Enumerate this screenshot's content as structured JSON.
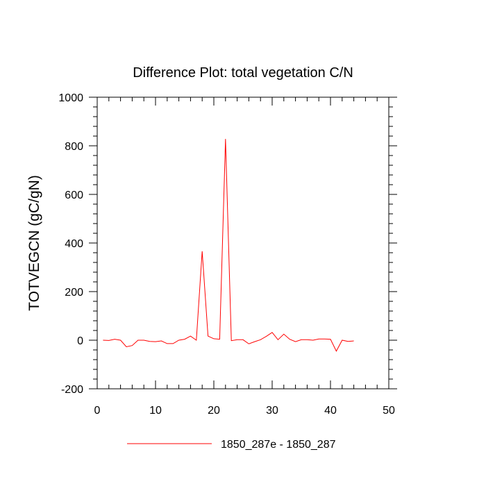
{
  "chart_data": {
    "type": "line",
    "title": "Difference Plot: total vegetation C/N",
    "xlabel": "",
    "ylabel": "TOTVEGCN  (gC/gN)",
    "xlim": [
      0,
      50
    ],
    "ylim": [
      -200,
      1000
    ],
    "xticks": [
      0,
      10,
      20,
      30,
      40,
      50
    ],
    "yticks": [
      -200,
      0,
      200,
      400,
      600,
      800,
      1000
    ],
    "xtick_labels": [
      "0",
      "10",
      "20",
      "30",
      "40",
      "50"
    ],
    "ytick_labels": [
      "-200",
      "0",
      "200",
      "400",
      "600",
      "800",
      "1000"
    ],
    "legend_position": "bottom-center",
    "series": [
      {
        "name": "1850_287e - 1850_287",
        "color": "#ff0000",
        "x": [
          1,
          2,
          3,
          4,
          5,
          6,
          7,
          8,
          9,
          10,
          11,
          12,
          13,
          14,
          15,
          16,
          17,
          18,
          19,
          20,
          21,
          22,
          23,
          24,
          25,
          26,
          27,
          28,
          29,
          30,
          31,
          32,
          33,
          34,
          35,
          36,
          37,
          38,
          39,
          40,
          41,
          42,
          43,
          44
        ],
        "values": [
          0,
          -1,
          4,
          0,
          -27,
          -22,
          0,
          0,
          -5,
          -6,
          -3,
          -14,
          -14,
          0,
          4,
          17,
          0,
          366,
          17,
          6,
          4,
          828,
          -2,
          2,
          2,
          -15,
          -6,
          2,
          16,
          32,
          2,
          25,
          4,
          -6,
          2,
          2,
          0,
          5,
          5,
          4,
          -45,
          0,
          -5,
          -3
        ]
      }
    ]
  }
}
